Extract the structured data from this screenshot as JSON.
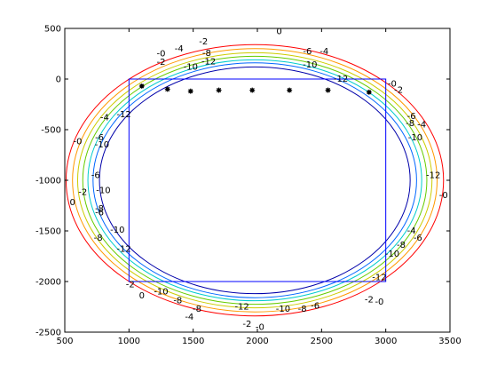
{
  "chart_data": {
    "type": "contour",
    "title": "",
    "xlabel": "",
    "ylabel": "",
    "xlim": [
      500,
      3500
    ],
    "ylim": [
      -2500,
      500
    ],
    "x_ticks": [
      500,
      1000,
      1500,
      2000,
      2500,
      3000,
      3500
    ],
    "y_ticks": [
      500,
      0,
      -500,
      -1000,
      -1500,
      -2000,
      -2500
    ],
    "x_tick_labels": [
      "500",
      "1000",
      "1500",
      "2000",
      "2500",
      "3000",
      "3500"
    ],
    "y_tick_labels": [
      "500",
      "0",
      "-500",
      "-1000",
      "-1500",
      "-2000",
      "-2500"
    ],
    "grid": false,
    "contour_center": [
      1980,
      -1000
    ],
    "contours": [
      {
        "level": 0,
        "rx": 1470,
        "ry": 1340,
        "color": "#ff0000"
      },
      {
        "level": -2,
        "rx": 1420,
        "ry": 1300,
        "color": "#ff9900"
      },
      {
        "level": -4,
        "rx": 1380,
        "ry": 1260,
        "color": "#cccc00"
      },
      {
        "level": -6,
        "rx": 1340,
        "ry": 1225,
        "color": "#66cc00"
      },
      {
        "level": -8,
        "rx": 1300,
        "ry": 1190,
        "color": "#00cccc"
      },
      {
        "level": -10,
        "rx": 1260,
        "ry": 1160,
        "color": "#0066ff"
      },
      {
        "level": -12,
        "rx": 1210,
        "ry": 1120,
        "color": "#0000aa"
      }
    ],
    "contour_labels": [
      {
        "text": "-2",
        "x": 1580,
        "y": 370
      },
      {
        "text": "-4",
        "x": 1390,
        "y": 297
      },
      {
        "text": "-8",
        "x": 1605,
        "y": 254
      },
      {
        "text": "-10",
        "x": 1480,
        "y": 120
      },
      {
        "text": "-12",
        "x": 1620,
        "y": 170
      },
      {
        "text": "-0",
        "x": 1250,
        "y": 250
      },
      {
        "text": "-2",
        "x": 1250,
        "y": 165
      },
      {
        "text": "0",
        "x": 2170,
        "y": 470
      },
      {
        "text": "-6",
        "x": 2390,
        "y": 270
      },
      {
        "text": "-4",
        "x": 2520,
        "y": 270
      },
      {
        "text": "-10",
        "x": 2410,
        "y": 140
      },
      {
        "text": "-12",
        "x": 2650,
        "y": 0
      },
      {
        "text": "-0",
        "x": 3050,
        "y": -50
      },
      {
        "text": "-2",
        "x": 3100,
        "y": -110
      },
      {
        "text": "-6",
        "x": 3200,
        "y": -370
      },
      {
        "text": "-8",
        "x": 3190,
        "y": -440
      },
      {
        "text": "-10",
        "x": 3230,
        "y": -580
      },
      {
        "text": "-4",
        "x": 3280,
        "y": -450
      },
      {
        "text": "-12",
        "x": 3370,
        "y": -950
      },
      {
        "text": "-0",
        "x": 3450,
        "y": -1150
      },
      {
        "text": "-4",
        "x": 3200,
        "y": -1500
      },
      {
        "text": "-6",
        "x": 3250,
        "y": -1570
      },
      {
        "text": "-8",
        "x": 3120,
        "y": -1640
      },
      {
        "text": "-10",
        "x": 3050,
        "y": -1730
      },
      {
        "text": "-12",
        "x": 2950,
        "y": -1960
      },
      {
        "text": "-2",
        "x": 2870,
        "y": -2180
      },
      {
        "text": "-0",
        "x": 2950,
        "y": -2200
      },
      {
        "text": "-6",
        "x": 2450,
        "y": -2240
      },
      {
        "text": "-8",
        "x": 2350,
        "y": -2270
      },
      {
        "text": "-10",
        "x": 2200,
        "y": -2270
      },
      {
        "text": "-12",
        "x": 1880,
        "y": -2250
      },
      {
        "text": "-2",
        "x": 1920,
        "y": -2420
      },
      {
        "text": "-0",
        "x": 2020,
        "y": -2450
      },
      {
        "text": "-8",
        "x": 1530,
        "y": -2270
      },
      {
        "text": "-4",
        "x": 1470,
        "y": -2350
      },
      {
        "text": "-8",
        "x": 1380,
        "y": -2190
      },
      {
        "text": "-10",
        "x": 1250,
        "y": -2100
      },
      {
        "text": "-2",
        "x": 1010,
        "y": -2030
      },
      {
        "text": "0",
        "x": 1100,
        "y": -2140
      },
      {
        "text": "-12",
        "x": 960,
        "y": -1680
      },
      {
        "text": "-10",
        "x": 910,
        "y": -1490
      },
      {
        "text": "-8",
        "x": 760,
        "y": -1570
      },
      {
        "text": "-6",
        "x": 770,
        "y": -1320
      },
      {
        "text": "-8",
        "x": 770,
        "y": -1280
      },
      {
        "text": "-10",
        "x": 800,
        "y": -1100
      },
      {
        "text": "-6",
        "x": 740,
        "y": -950
      },
      {
        "text": "-2",
        "x": 640,
        "y": -1120
      },
      {
        "text": "0",
        "x": 560,
        "y": -1220
      },
      {
        "text": "-0",
        "x": 600,
        "y": -620
      },
      {
        "text": "-10",
        "x": 790,
        "y": -650
      },
      {
        "text": "-6",
        "x": 770,
        "y": -580
      },
      {
        "text": "-4",
        "x": 810,
        "y": -380
      },
      {
        "text": "-12",
        "x": 960,
        "y": -350
      }
    ],
    "points": [
      {
        "x": 1100,
        "y": -70
      },
      {
        "x": 1300,
        "y": -100
      },
      {
        "x": 1480,
        "y": -120
      },
      {
        "x": 1700,
        "y": -110
      },
      {
        "x": 1960,
        "y": -110
      },
      {
        "x": 2250,
        "y": -110
      },
      {
        "x": 2550,
        "y": -110
      },
      {
        "x": 2870,
        "y": -130
      }
    ],
    "rectangle": {
      "x0": 1000,
      "x1": 3000,
      "y0": 0,
      "y1": -2000,
      "color": "#0000ff"
    }
  }
}
